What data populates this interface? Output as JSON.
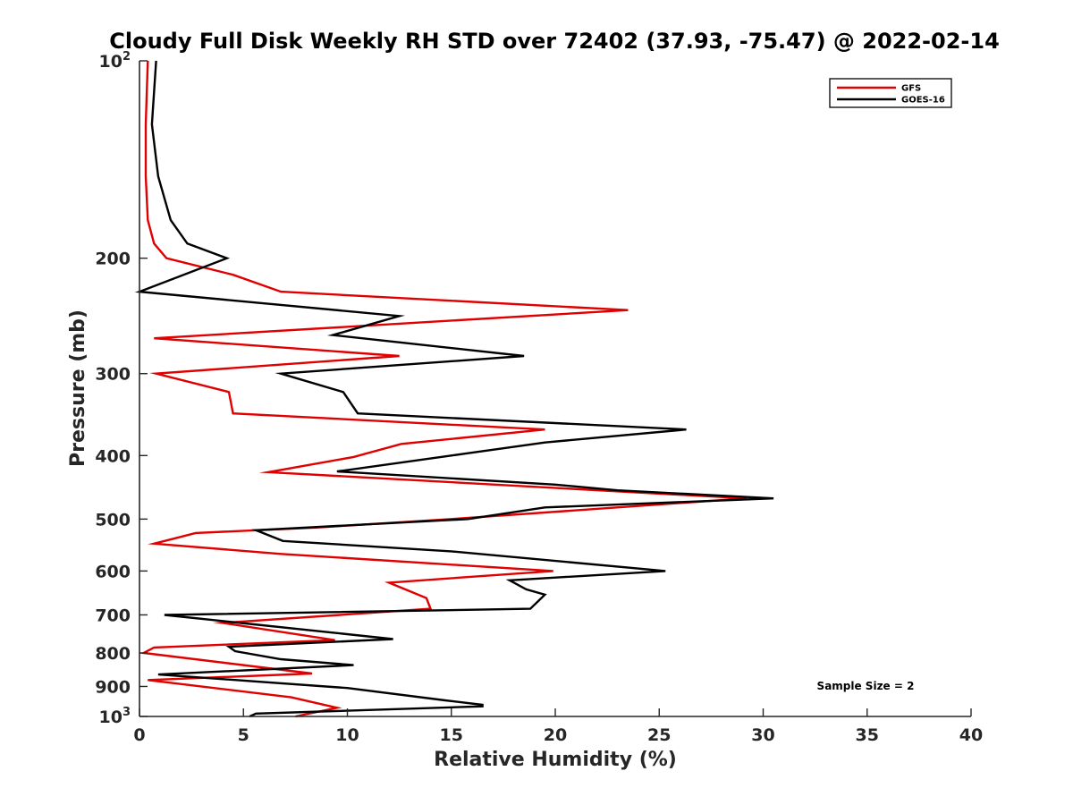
{
  "chart_data": {
    "type": "line",
    "title": "Cloudy Full Disk Weekly RH STD over 72402 (37.93, -75.47) @ 2022-02-14",
    "xlabel": "Relative Humidity (%)",
    "ylabel": "Pressure (mb)",
    "xlim": [
      0,
      40
    ],
    "ylim": [
      100,
      1000
    ],
    "y_scale": "log",
    "y_reversed": true,
    "grid": false,
    "legend_position": "top-right",
    "x_ticks": [
      "0",
      "5",
      "10",
      "15",
      "20",
      "25",
      "30",
      "35",
      "40"
    ],
    "y_ticks": [
      {
        "value": 100,
        "base": "10",
        "exp": "2"
      },
      {
        "value": 200,
        "label": "200"
      },
      {
        "value": 300,
        "label": "300"
      },
      {
        "value": 400,
        "label": "400"
      },
      {
        "value": 500,
        "label": "500"
      },
      {
        "value": 600,
        "label": "600"
      },
      {
        "value": 700,
        "label": "700"
      },
      {
        "value": 800,
        "label": "800"
      },
      {
        "value": 900,
        "label": "900"
      },
      {
        "value": 1000,
        "base": "10",
        "exp": "3"
      }
    ],
    "series": [
      {
        "name": "GFS",
        "color": "#e00000",
        "points": [
          [
            0.4,
            100
          ],
          [
            0.3,
            125
          ],
          [
            0.3,
            150
          ],
          [
            0.4,
            175
          ],
          [
            0.7,
            190
          ],
          [
            1.3,
            200
          ],
          [
            4.5,
            212
          ],
          [
            6.8,
            225
          ],
          [
            23.5,
            240
          ],
          [
            0.7,
            265
          ],
          [
            12.5,
            282
          ],
          [
            0.8,
            300
          ],
          [
            4.3,
            320
          ],
          [
            4.5,
            345
          ],
          [
            19.5,
            365
          ],
          [
            12.6,
            384
          ],
          [
            10.3,
            402
          ],
          [
            6.2,
            424
          ],
          [
            29.2,
            465
          ],
          [
            15.0,
            500
          ],
          [
            8.5,
            515
          ],
          [
            2.7,
            525
          ],
          [
            0.7,
            545
          ],
          [
            6.8,
            565
          ],
          [
            19.9,
            600
          ],
          [
            12.0,
            625
          ],
          [
            13.8,
            660
          ],
          [
            14.0,
            685
          ],
          [
            4.0,
            720
          ],
          [
            9.4,
            765
          ],
          [
            0.7,
            785
          ],
          [
            0.2,
            800
          ],
          [
            8.3,
            860
          ],
          [
            0.4,
            880
          ],
          [
            7.3,
            935
          ],
          [
            9.5,
            970
          ],
          [
            7.5,
            1000
          ]
        ]
      },
      {
        "name": "GOES-16",
        "color": "#000000",
        "points": [
          [
            0.8,
            100
          ],
          [
            0.6,
            125
          ],
          [
            0.9,
            150
          ],
          [
            1.5,
            175
          ],
          [
            2.3,
            190
          ],
          [
            4.2,
            200
          ],
          [
            0.0,
            225
          ],
          [
            12.5,
            245
          ],
          [
            9.3,
            262
          ],
          [
            18.5,
            282
          ],
          [
            6.8,
            300
          ],
          [
            9.8,
            320
          ],
          [
            10.5,
            345
          ],
          [
            26.3,
            365
          ],
          [
            19.5,
            382
          ],
          [
            15.0,
            400
          ],
          [
            9.5,
            423
          ],
          [
            20.0,
            443
          ],
          [
            23.0,
            452
          ],
          [
            30.5,
            465
          ],
          [
            19.5,
            480
          ],
          [
            15.8,
            500
          ],
          [
            5.6,
            520
          ],
          [
            6.9,
            540
          ],
          [
            15.0,
            560
          ],
          [
            25.3,
            600
          ],
          [
            17.8,
            620
          ],
          [
            18.6,
            640
          ],
          [
            19.5,
            652
          ],
          [
            18.8,
            685
          ],
          [
            1.2,
            700
          ],
          [
            9.3,
            745
          ],
          [
            12.2,
            762
          ],
          [
            4.3,
            783
          ],
          [
            4.6,
            795
          ],
          [
            6.8,
            818
          ],
          [
            10.3,
            835
          ],
          [
            0.9,
            863
          ],
          [
            10.0,
            905
          ],
          [
            14.7,
            945
          ],
          [
            16.5,
            960
          ],
          [
            16.5,
            965
          ],
          [
            5.6,
            990
          ],
          [
            5.3,
            1000
          ]
        ]
      }
    ],
    "annotations": [
      "Sample Size = 2"
    ]
  }
}
